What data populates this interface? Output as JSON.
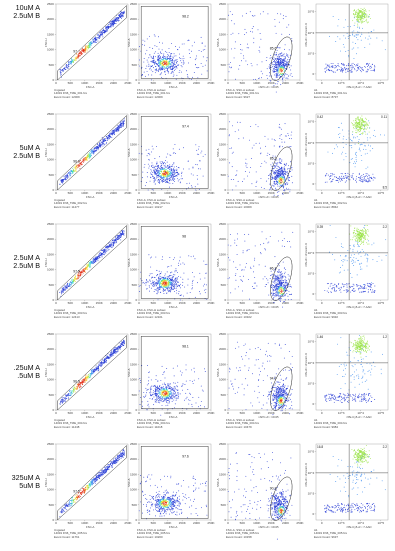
{
  "chart_data": {
    "type": "scatter",
    "description_free": true,
    "rows": [
      {
        "condition": [
          "10uM A",
          "2.5uM B"
        ],
        "panels": [
          {
            "kind": "singlets",
            "gate_pct": "97",
            "cap": [
              "Ungated",
              "14019 FN6_TME_001.fcs",
              "Event Count: 12009"
            ],
            "xaxis": "FSC-A",
            "yaxis": "FSC-H"
          },
          {
            "kind": "cells",
            "gate_pct": "98.2",
            "cap": [
              "FSC-A, FSC-H subset",
              "14019 FN6_TME_001.fcs",
              "Event Count: 12009"
            ],
            "xaxis": "FSC-A",
            "yaxis": "SSC-A"
          },
          {
            "kind": "population",
            "gate_pct": "85.6",
            "cap": [
              "FSC-A, SSC-A subset",
              "14019 FN6_TME_001.fcs",
              "Event Count: 9627"
            ],
            "xaxis": "<APC-A>: CD45",
            "yaxis": "SSC-A"
          },
          {
            "kind": "quadrant",
            "quad": [
              "",
              "",
              "",
              ""
            ],
            "cap": [
              "A1",
              "14019 FN6_TME_001.fcs",
              "Event Count: 8737"
            ],
            "xaxis": "<PE-Cy5-A>: 7-AAD",
            "yaxis": "<PE-A>: Annexin V"
          }
        ]
      },
      {
        "condition": [
          "5uM A",
          "2.5uM B"
        ],
        "panels": [
          {
            "kind": "singlets",
            "gate_pct": "96.3",
            "cap": [
              "Ungated",
              "14019 FN6_TME_002.fcs",
              "Event Count: 11477"
            ],
            "xaxis": "FSC-A",
            "yaxis": "FSC-H"
          },
          {
            "kind": "cells",
            "gate_pct": "97.4",
            "cap": [
              "FSC-A, FSC-H subset",
              "14019 FN6_TME_002.fcs",
              "Event Count: 10217"
            ],
            "xaxis": "FSC-A",
            "yaxis": "SSC-A"
          },
          {
            "kind": "population",
            "gate_pct": "85.3",
            "cap": [
              "FSC-A, SSC-A subset",
              "14019 FN6_TME_002.fcs",
              "Event Count: 10009"
            ],
            "xaxis": "<APC-A>: CD45",
            "yaxis": "SSC-A"
          },
          {
            "kind": "quadrant",
            "quad": [
              "0.42",
              "0.11",
              "",
              "8.5"
            ],
            "cap": [
              "A1",
              "14019 FN6_TME_002.fcs",
              "Event Count: 8842"
            ],
            "xaxis": "<PE-Cy5-A>: 7-AAD",
            "yaxis": "<PE-A>: Annexin V"
          }
        ]
      },
      {
        "condition": [
          "2.5uM A",
          "2.5uM B"
        ],
        "panels": [
          {
            "kind": "singlets",
            "gate_pct": "97.5",
            "cap": [
              "Ungated",
              "14019 FN6_TME_003.fcs",
              "Event Count: 12413"
            ],
            "xaxis": "FSC-A",
            "yaxis": "FSC-H"
          },
          {
            "kind": "cells",
            "gate_pct": "98",
            "cap": [
              "FSC-A, FSC-H subset",
              "14019 FN6_TME_003.fcs",
              "Event Count: 12101"
            ],
            "xaxis": "FSC-A",
            "yaxis": "SSC-A"
          },
          {
            "kind": "population",
            "gate_pct": "96.2",
            "cap": [
              "FSC-A, SSC-A subset",
              "14019 FN6_TME_003.fcs",
              "Event Count: 10322"
            ],
            "xaxis": "<APC-A>: CD45",
            "yaxis": "SSC-A"
          },
          {
            "kind": "quadrant",
            "quad": [
              "0.39",
              "2.2",
              "",
              ""
            ],
            "cap": [
              "A1",
              "14019 FN6_TME_003.fcs",
              "Event Count: 9932"
            ],
            "xaxis": "<PE-Cy5-A>: 7-AAD",
            "yaxis": "<PE-A>: Annexin V"
          }
        ]
      },
      {
        "condition": [
          ".25uM A",
          ".5uM B"
        ],
        "panels": [
          {
            "kind": "singlets",
            "gate_pct": "96.5",
            "cap": [
              "Ungated",
              "14019 FN6_TME_004.fcs",
              "Event Count: 11448"
            ],
            "xaxis": "FSC-A",
            "yaxis": "FSC-H"
          },
          {
            "kind": "cells",
            "gate_pct": "98.1",
            "cap": [
              "FSC-A, FSC-H subset",
              "14019 FN6_TME_004.fcs",
              "Event Count: 11018"
            ],
            "xaxis": "FSC-A",
            "yaxis": "SSC-A"
          },
          {
            "kind": "population",
            "gate_pct": "94.9",
            "cap": [
              "FSC-A, SSC-A subset",
              "14019 FN6_TME_004.fcs",
              "Event Count: 10479"
            ],
            "xaxis": "<APC-A>: CD45",
            "yaxis": "SSC-A"
          },
          {
            "kind": "quadrant",
            "quad": [
              "1.46",
              "1.2",
              "",
              ""
            ],
            "cap": [
              "A1",
              "14019 FN6_TME_004.fcs",
              "Event Count: 9984"
            ],
            "xaxis": "<PE-Cy5-A>: 7-AAD",
            "yaxis": "<PE-A>: Annexin V"
          }
        ]
      },
      {
        "condition": [
          "325uM A",
          "5uM B"
        ],
        "panels": [
          {
            "kind": "singlets",
            "gate_pct": "97.5",
            "cap": [
              "Ungated",
              "14019 FN6_TME_005.fcs",
              "Event Count: 11761"
            ],
            "xaxis": "FSC-A",
            "yaxis": "FSC-H"
          },
          {
            "kind": "cells",
            "gate_pct": "97.6",
            "cap": [
              "FSC-A, FSC-H subset",
              "14019 FN6_TME_005.fcs",
              "Event Count: 10200"
            ],
            "xaxis": "FSC-A",
            "yaxis": "SSC-A"
          },
          {
            "kind": "population",
            "gate_pct": "90.3",
            "cap": [
              "FSC-A, SSC-A subset",
              "14019 FN6_TME_005.fcs",
              "Event Count: 10158"
            ],
            "xaxis": "<APC-A>: CD45",
            "yaxis": "SSC-A"
          },
          {
            "kind": "quadrant",
            "quad": [
              "16.8",
              "2.2",
              "",
              ""
            ],
            "cap": [
              "A1",
              "14019 FN6_TME_005.fcs",
              "Event Count: 9637"
            ],
            "xaxis": "<PE-Cy5-A>: 7-AAD",
            "yaxis": "<PE-A>: Annexin V"
          }
        ]
      }
    ],
    "linear_ticks": [
      "0",
      "50K",
      "100K",
      "150K",
      "200K",
      "250K"
    ],
    "log_ticks": [
      "0",
      "10^3",
      "10^4",
      "10^5"
    ],
    "density_colors": [
      "#2b3fd6",
      "#3f8ef0",
      "#38d8c4",
      "#9be34a",
      "#f5e23a",
      "#f08a1e",
      "#e2301a"
    ],
    "gate_color": "#222222"
  }
}
